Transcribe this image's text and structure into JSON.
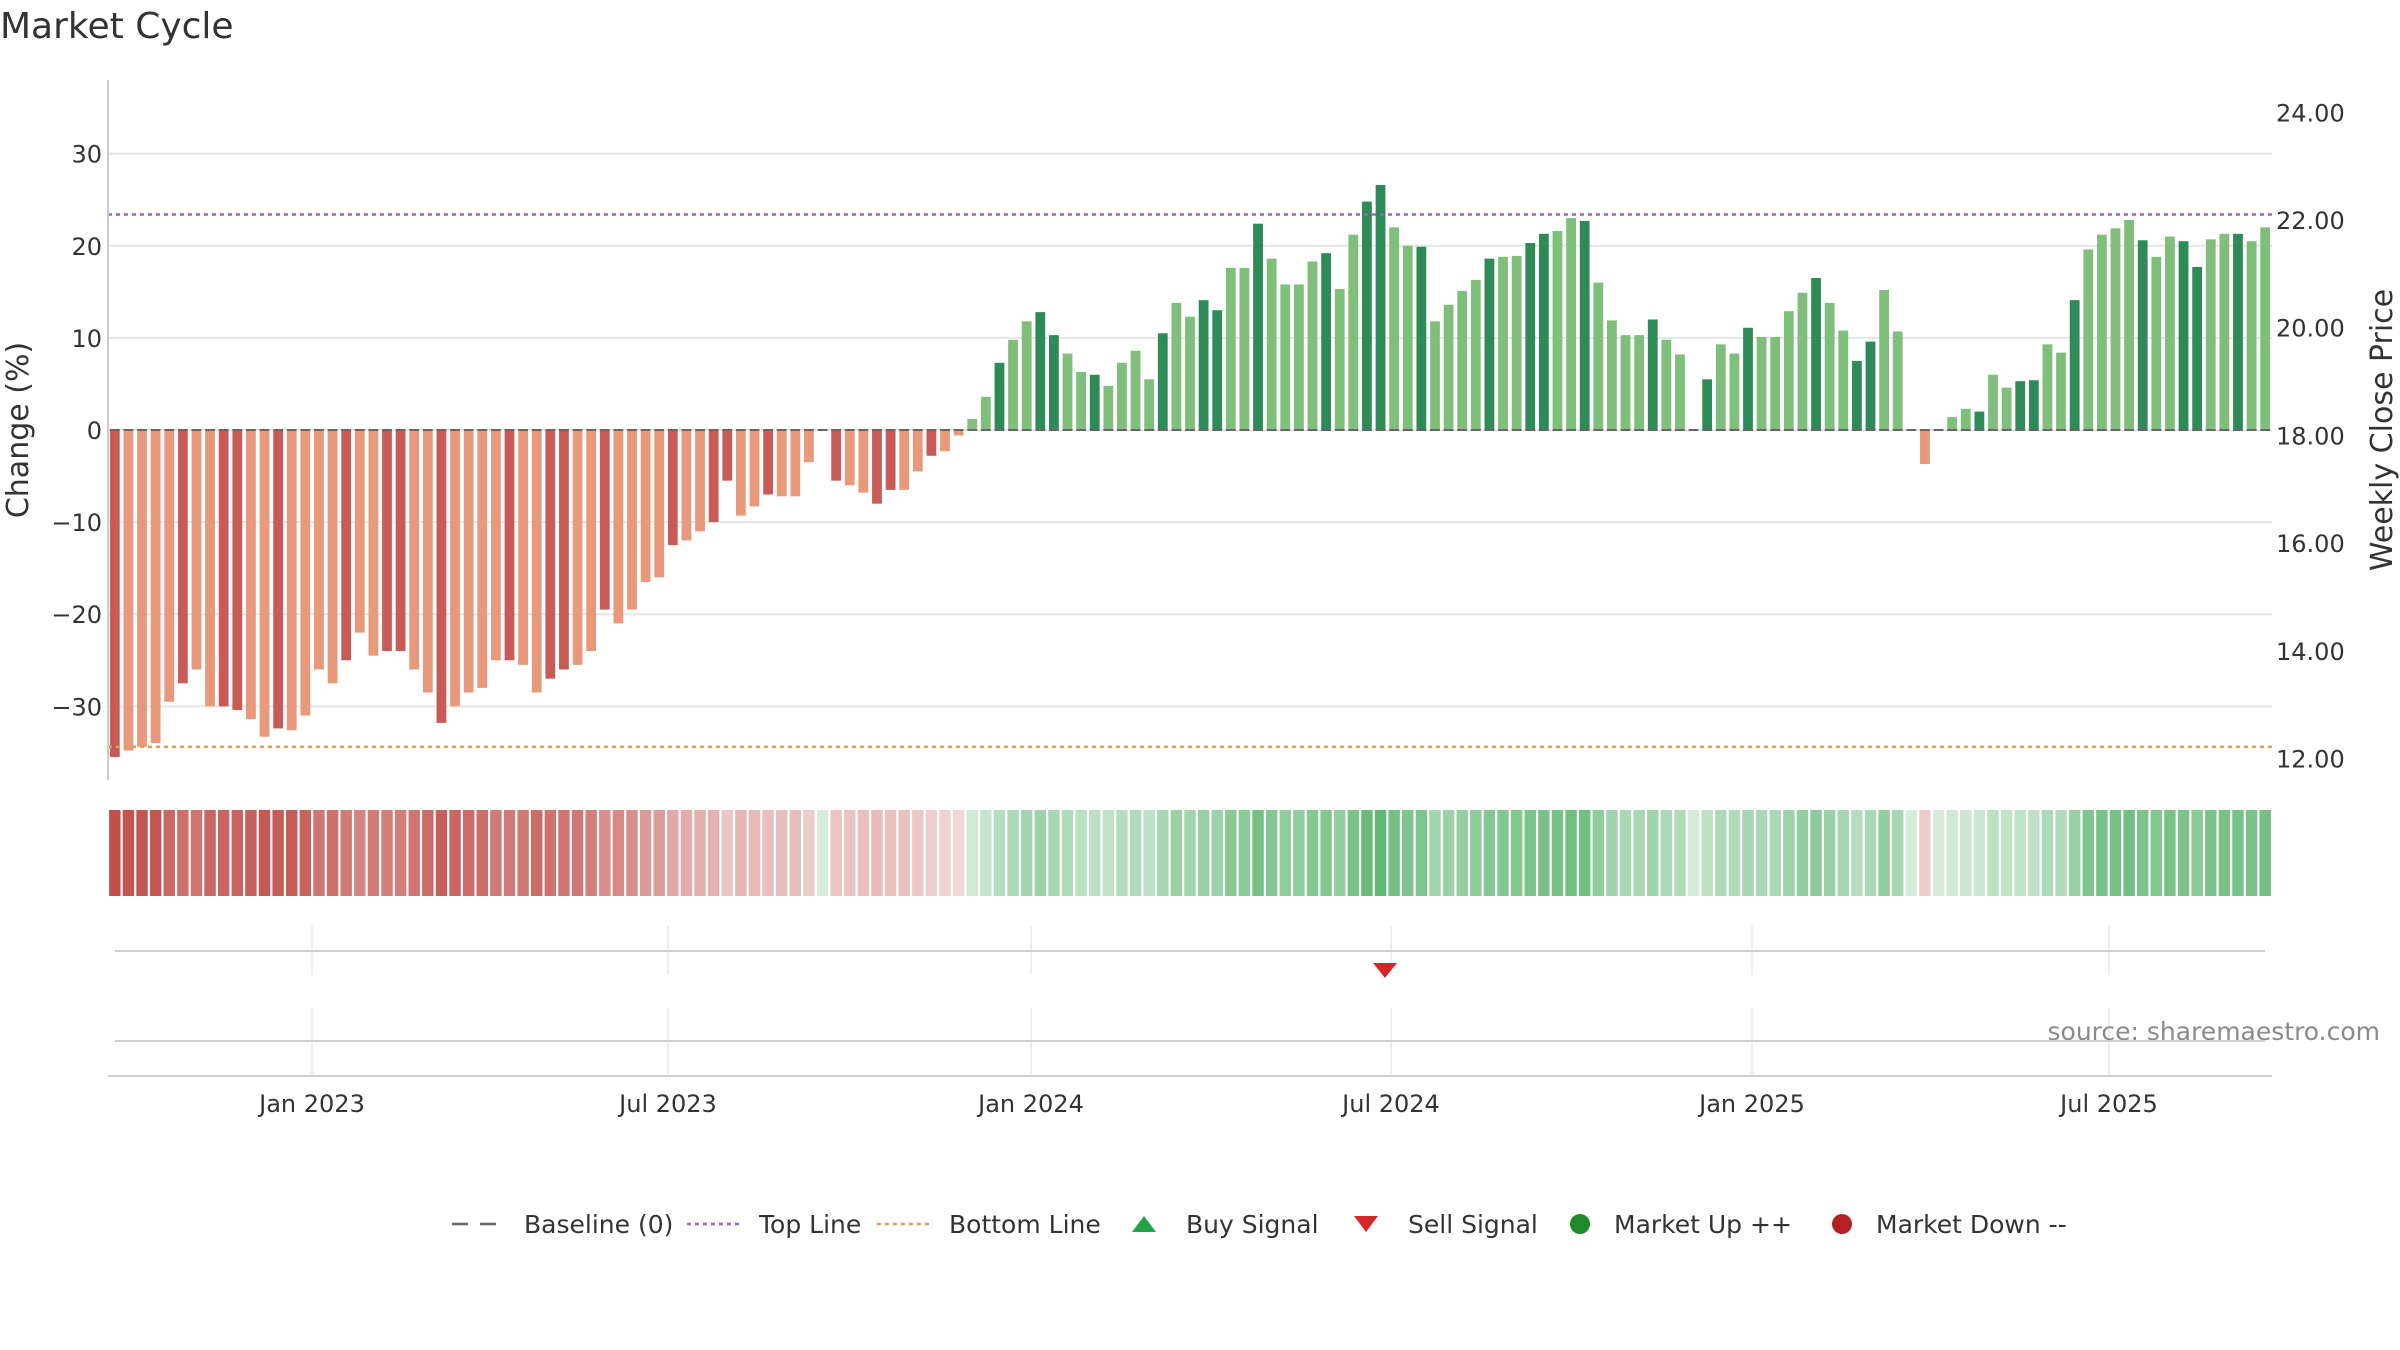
{
  "chart_data": {
    "type": "bar",
    "title": "Market Cycle",
    "ylabel": "Change (%)",
    "y2label": "Weekly Close Price",
    "ylim": [
      -38,
      38
    ],
    "y2lim": [
      11.6,
      24.6
    ],
    "yticks": [
      30,
      20,
      10,
      0,
      -10,
      -20,
      -30
    ],
    "y2ticks": [
      "24.00",
      "22.00",
      "20.00",
      "18.00",
      "16.00",
      "14.00",
      "12.00"
    ],
    "xticks": [
      "Jan 2023",
      "Jul 2023",
      "Jan 2024",
      "Jul 2024",
      "Jan 2025",
      "Jul 2025"
    ],
    "top_line": 23.4,
    "bottom_line": -34.4,
    "values": [
      -35.5,
      -34.8,
      -34.4,
      -34.0,
      -29.5,
      -27.5,
      -26.0,
      -30.0,
      -30.0,
      -30.4,
      -31.4,
      -33.3,
      -32.4,
      -32.6,
      -31.0,
      -26.0,
      -27.5,
      -25.0,
      -22.0,
      -24.5,
      -24.0,
      -24.0,
      -26.0,
      -28.5,
      -31.8,
      -30.0,
      -28.5,
      -28.0,
      -25.0,
      -25.0,
      -25.5,
      -28.5,
      -27.0,
      -26.0,
      -25.5,
      -24.0,
      -19.5,
      -21.0,
      -19.5,
      -16.5,
      -16.0,
      -12.5,
      -12.0,
      -11.0,
      -10.0,
      -5.5,
      -9.3,
      -8.3,
      -7.0,
      -7.2,
      -7.2,
      -3.5,
      0,
      -5.5,
      -6.0,
      -6.8,
      -8.0,
      -6.5,
      -6.5,
      -4.5,
      -2.8,
      -2.3,
      -0.6,
      1.2,
      3.6,
      7.3,
      9.8,
      11.8,
      12.8,
      10.3,
      8.3,
      6.3,
      6.0,
      4.8,
      7.3,
      8.6,
      5.5,
      10.5,
      13.8,
      12.3,
      14.1,
      13.0,
      17.6,
      17.6,
      22.4,
      18.6,
      15.8,
      15.8,
      18.3,
      19.2,
      15.3,
      21.2,
      24.8,
      26.6,
      22.0,
      20.0,
      19.9,
      11.8,
      13.6,
      15.1,
      16.3,
      18.6,
      18.8,
      18.9,
      20.3,
      21.3,
      21.6,
      23.0,
      22.7,
      16.0,
      11.9,
      10.3,
      10.3,
      12.0,
      9.8,
      8.2,
      0,
      5.5,
      9.3,
      8.3,
      11.1,
      10.1,
      10.1,
      12.9,
      14.9,
      16.5,
      13.8,
      10.8,
      7.5,
      9.6,
      15.2,
      10.7,
      0,
      -3.7,
      0,
      1.4,
      2.3,
      2.0,
      6.0,
      4.6,
      5.3,
      5.4,
      9.3,
      8.4,
      14.1,
      19.6,
      21.2,
      21.9,
      22.8,
      20.6,
      18.8,
      21.0,
      20.5,
      17.7,
      20.7,
      21.3,
      21.3,
      20.5,
      22.0
    ],
    "series_colors": {
      "down_strong": "#c85b57",
      "down_light": "#e8997c",
      "up_strong": "#2e8b57",
      "up_light": "#7fbf7b"
    },
    "signals": [
      {
        "type": "sell",
        "x": "Jul 2024"
      }
    ],
    "source": "source: sharemaestro.com",
    "legend": [
      {
        "label": "Baseline (0)",
        "marker": "dash",
        "color": "#666666"
      },
      {
        "label": "Top Line",
        "marker": "dotted",
        "color": "#9467bd"
      },
      {
        "label": "Bottom Line",
        "marker": "dotted",
        "color": "#e39b5a"
      },
      {
        "label": "Buy Signal",
        "marker": "triangle-up",
        "color": "#22a34a"
      },
      {
        "label": "Sell Signal",
        "marker": "triangle-down",
        "color": "#d62728"
      },
      {
        "label": "Market Up ++",
        "marker": "circle",
        "color": "#1f8a2a"
      },
      {
        "label": "Market Down --",
        "marker": "circle",
        "color": "#b22222"
      }
    ],
    "legend_placement": "bottom-center"
  }
}
